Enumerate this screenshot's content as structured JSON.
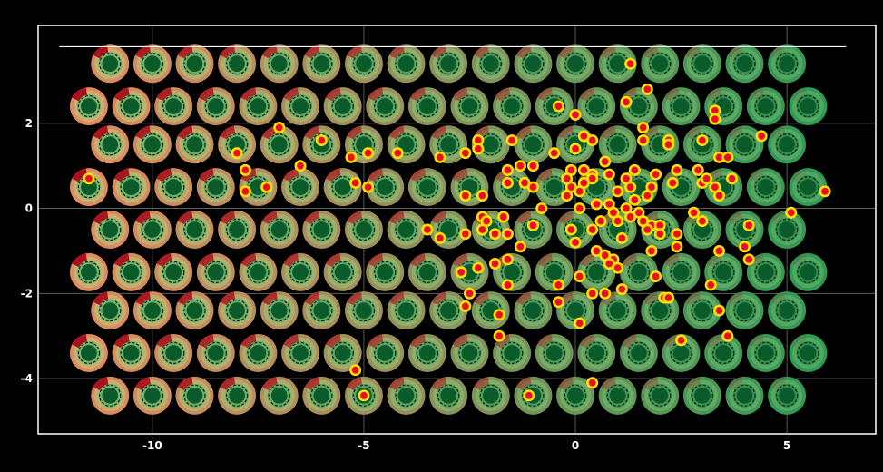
{
  "chart_data": {
    "type": "scatter",
    "title": "",
    "xlabel": "",
    "ylabel": "",
    "xlim": [
      -12.7,
      7.1
    ],
    "ylim": [
      -5.3,
      4.3
    ],
    "xticks": [
      -10,
      -5,
      0,
      5
    ],
    "yticks": [
      2,
      0,
      -2,
      -4
    ],
    "xtick_labels": [
      "-10",
      "-5",
      "0",
      "5"
    ],
    "ytick_labels": [
      "2",
      "0",
      "-2",
      "-4"
    ],
    "grid": true,
    "background": "#000000",
    "frame_color": "#ffffff",
    "reference_line_y": 3.8,
    "glyph_grid": {
      "rows": [
        {
          "y": 3.4,
          "x_start": -11.0,
          "x_end": 5.8
        },
        {
          "y": 2.4,
          "x_start": -11.5,
          "x_end": 5.5
        },
        {
          "y": 1.5,
          "x_start": -11.0,
          "x_end": 5.8
        },
        {
          "y": 0.5,
          "x_start": -11.5,
          "x_end": 5.8
        },
        {
          "y": -0.5,
          "x_start": -11.0,
          "x_end": 5.8
        },
        {
          "y": -1.5,
          "x_start": -11.5,
          "x_end": 5.5
        },
        {
          "y": -2.4,
          "x_start": -11.0,
          "x_end": 5.8
        },
        {
          "y": -3.4,
          "x_start": -11.5,
          "x_end": 5.5
        },
        {
          "y": -4.4,
          "x_start": -11.0,
          "x_end": 5.8
        }
      ],
      "spacing": 1.0,
      "colors": {
        "low": "#e08a60",
        "high": "#2c9a54",
        "core": "#0a5a2a",
        "wedge": "#a8101c"
      }
    },
    "series": [
      {
        "marker_color": "#e8101e",
        "marker_edge": "#ffe000",
        "points": [
          [
            1.3,
            3.4
          ],
          [
            1.7,
            2.8
          ],
          [
            -0.4,
            2.4
          ],
          [
            1.2,
            2.5
          ],
          [
            3.3,
            2.3
          ],
          [
            3.3,
            2.1
          ],
          [
            0.0,
            2.2
          ],
          [
            -7.0,
            1.9
          ],
          [
            -6.0,
            1.6
          ],
          [
            -8.0,
            1.3
          ],
          [
            -6.5,
            1.0
          ],
          [
            -4.2,
            1.3
          ],
          [
            -4.9,
            1.3
          ],
          [
            -5.3,
            1.2
          ],
          [
            -3.2,
            1.2
          ],
          [
            -2.3,
            1.6
          ],
          [
            -2.6,
            1.3
          ],
          [
            -2.3,
            1.4
          ],
          [
            -1.5,
            1.6
          ],
          [
            -0.5,
            1.3
          ],
          [
            0.0,
            1.4
          ],
          [
            0.2,
            1.7
          ],
          [
            0.4,
            1.6
          ],
          [
            1.6,
            1.9
          ],
          [
            1.6,
            1.6
          ],
          [
            2.2,
            1.6
          ],
          [
            2.2,
            1.5
          ],
          [
            3.0,
            1.6
          ],
          [
            4.4,
            1.7
          ],
          [
            3.4,
            1.2
          ],
          [
            3.6,
            1.2
          ],
          [
            -7.8,
            0.9
          ],
          [
            -11.5,
            0.7
          ],
          [
            -7.3,
            0.5
          ],
          [
            -7.8,
            0.4
          ],
          [
            -5.2,
            0.6
          ],
          [
            -4.9,
            0.5
          ],
          [
            -1.6,
            0.9
          ],
          [
            -1.3,
            1.0
          ],
          [
            -1.0,
            1.0
          ],
          [
            -1.6,
            0.6
          ],
          [
            -1.2,
            0.6
          ],
          [
            -1.0,
            0.5
          ],
          [
            -0.1,
            0.9
          ],
          [
            0.2,
            0.9
          ],
          [
            0.4,
            0.8
          ],
          [
            0.7,
            1.1
          ],
          [
            0.8,
            0.8
          ],
          [
            1.2,
            0.7
          ],
          [
            1.4,
            0.9
          ],
          [
            1.9,
            0.8
          ],
          [
            2.4,
            0.9
          ],
          [
            2.9,
            0.9
          ],
          [
            -0.2,
            0.7
          ],
          [
            -0.1,
            0.5
          ],
          [
            0.1,
            0.4
          ],
          [
            0.2,
            0.6
          ],
          [
            0.4,
            0.7
          ],
          [
            -0.2,
            0.3
          ],
          [
            1.0,
            0.4
          ],
          [
            1.3,
            0.5
          ],
          [
            1.8,
            0.5
          ],
          [
            2.3,
            0.6
          ],
          [
            3.0,
            0.6
          ],
          [
            3.1,
            0.7
          ],
          [
            3.3,
            0.5
          ],
          [
            3.7,
            0.7
          ],
          [
            5.9,
            0.4
          ],
          [
            -2.6,
            0.3
          ],
          [
            -2.2,
            0.3
          ],
          [
            -0.8,
            0.0
          ],
          [
            0.1,
            0.0
          ],
          [
            0.5,
            0.1
          ],
          [
            0.8,
            0.1
          ],
          [
            0.9,
            -0.1
          ],
          [
            1.2,
            0.0
          ],
          [
            1.4,
            0.2
          ],
          [
            1.7,
            0.3
          ],
          [
            3.4,
            0.3
          ],
          [
            5.1,
            -0.1
          ],
          [
            -2.2,
            -0.2
          ],
          [
            -2.1,
            -0.3
          ],
          [
            -1.7,
            -0.2
          ],
          [
            -1.0,
            -0.4
          ],
          [
            -0.1,
            -0.5
          ],
          [
            0.4,
            -0.5
          ],
          [
            0.6,
            -0.3
          ],
          [
            1.0,
            -0.3
          ],
          [
            1.3,
            -0.2
          ],
          [
            1.5,
            -0.1
          ],
          [
            1.6,
            -0.3
          ],
          [
            1.8,
            -0.4
          ],
          [
            2.0,
            -0.4
          ],
          [
            2.8,
            -0.1
          ],
          [
            3.0,
            -0.3
          ],
          [
            4.1,
            -0.4
          ],
          [
            -3.5,
            -0.5
          ],
          [
            -3.2,
            -0.7
          ],
          [
            -2.6,
            -0.6
          ],
          [
            -2.2,
            -0.5
          ],
          [
            -1.9,
            -0.6
          ],
          [
            -1.6,
            -0.6
          ],
          [
            0.0,
            -0.8
          ],
          [
            1.1,
            -0.7
          ],
          [
            1.7,
            -0.5
          ],
          [
            2.0,
            -0.6
          ],
          [
            2.4,
            -0.6
          ],
          [
            2.4,
            -0.9
          ],
          [
            1.8,
            -1.0
          ],
          [
            -1.3,
            -0.9
          ],
          [
            -1.6,
            -1.2
          ],
          [
            0.5,
            -1.0
          ],
          [
            0.7,
            -1.1
          ],
          [
            0.9,
            -1.2
          ],
          [
            4.0,
            -0.9
          ],
          [
            3.4,
            -1.0
          ],
          [
            4.1,
            -1.2
          ],
          [
            -1.9,
            -1.3
          ],
          [
            -2.3,
            -1.4
          ],
          [
            -2.7,
            -1.5
          ],
          [
            0.8,
            -1.3
          ],
          [
            1.0,
            -1.4
          ],
          [
            0.1,
            -1.6
          ],
          [
            1.9,
            -1.6
          ],
          [
            -1.6,
            -1.8
          ],
          [
            -0.4,
            -1.8
          ],
          [
            3.2,
            -1.8
          ],
          [
            0.4,
            -2.0
          ],
          [
            0.7,
            -2.0
          ],
          [
            1.1,
            -1.9
          ],
          [
            2.1,
            -2.1
          ],
          [
            -2.5,
            -2.0
          ],
          [
            -0.4,
            -2.2
          ],
          [
            2.2,
            -2.1
          ],
          [
            -2.6,
            -2.3
          ],
          [
            -1.8,
            -2.5
          ],
          [
            3.4,
            -2.4
          ],
          [
            0.1,
            -2.7
          ],
          [
            -1.8,
            -3.0
          ],
          [
            2.5,
            -3.1
          ],
          [
            3.6,
            -3.0
          ],
          [
            -5.2,
            -3.8
          ],
          [
            -5.0,
            -4.4
          ],
          [
            -1.1,
            -4.4
          ],
          [
            0.4,
            -4.1
          ]
        ]
      }
    ]
  }
}
